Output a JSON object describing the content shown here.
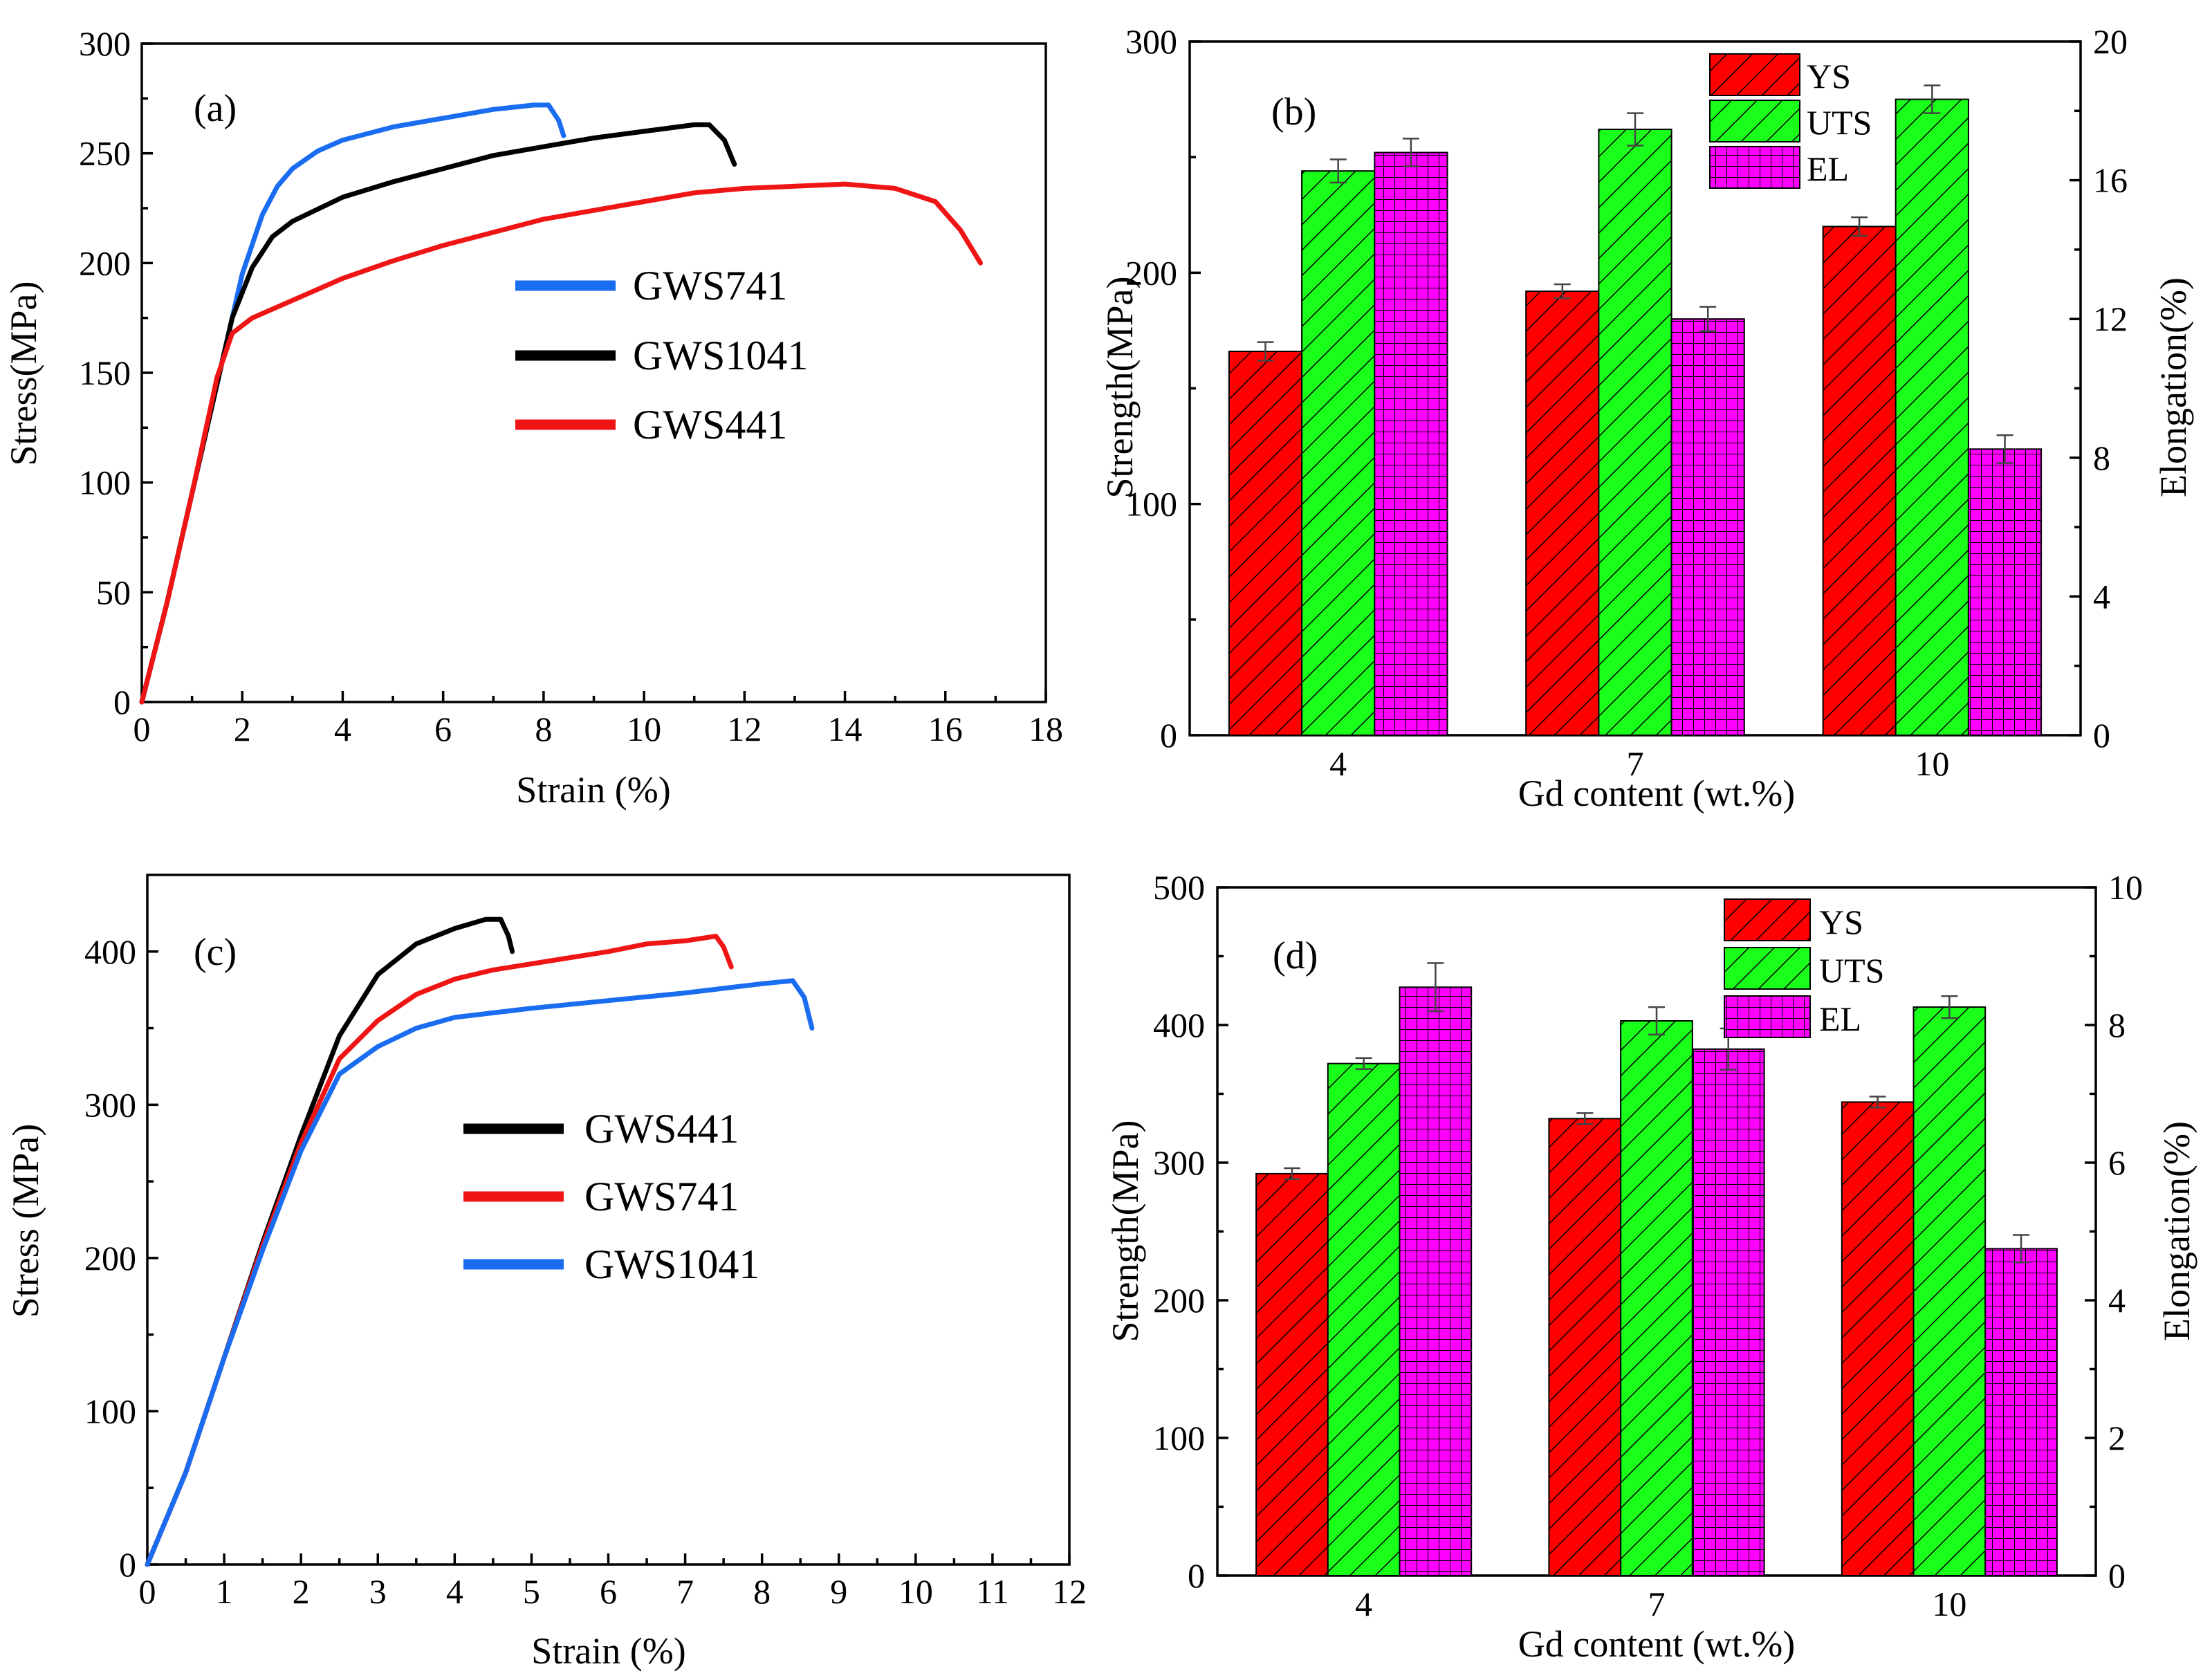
{
  "chart_data": [
    {
      "id": "a",
      "type": "line",
      "panel_label": "(a)",
      "xlabel": "Strain (%)",
      "ylabel": "Stress(MPa)",
      "xlim": [
        0,
        18
      ],
      "ylim": [
        0,
        300
      ],
      "xticks": [
        0,
        2,
        4,
        6,
        8,
        10,
        12,
        14,
        16,
        18
      ],
      "yticks": [
        0,
        50,
        100,
        150,
        200,
        250,
        300
      ],
      "legend_position": "center",
      "series": [
        {
          "name": "GWS741",
          "color": "#1a6cf0",
          "points": [
            [
              0,
              0
            ],
            [
              0.5,
              45
            ],
            [
              1.0,
              95
            ],
            [
              1.5,
              145
            ],
            [
              2.0,
              195
            ],
            [
              2.4,
              222
            ],
            [
              2.7,
              235
            ],
            [
              3.0,
              243
            ],
            [
              3.5,
              251
            ],
            [
              4.0,
              256
            ],
            [
              5.0,
              262
            ],
            [
              6.0,
              266
            ],
            [
              7.0,
              270
            ],
            [
              7.8,
              272
            ],
            [
              8.1,
              272
            ],
            [
              8.3,
              265
            ],
            [
              8.4,
              258
            ]
          ]
        },
        {
          "name": "GWS1041",
          "color": "#000000",
          "points": [
            [
              0,
              0
            ],
            [
              0.5,
              45
            ],
            [
              1.0,
              95
            ],
            [
              1.5,
              145
            ],
            [
              1.8,
              175
            ],
            [
              2.2,
              198
            ],
            [
              2.6,
              212
            ],
            [
              3.0,
              219
            ],
            [
              4.0,
              230
            ],
            [
              5.0,
              237
            ],
            [
              6.0,
              243
            ],
            [
              7.0,
              249
            ],
            [
              8.0,
              253
            ],
            [
              9.0,
              257
            ],
            [
              10.0,
              260
            ],
            [
              11.0,
              263
            ],
            [
              11.3,
              263
            ],
            [
              11.6,
              256
            ],
            [
              11.8,
              245
            ]
          ]
        },
        {
          "name": "GWS441",
          "color": "#f01515",
          "points": [
            [
              0,
              0
            ],
            [
              0.5,
              45
            ],
            [
              1.0,
              95
            ],
            [
              1.5,
              148
            ],
            [
              1.8,
              168
            ],
            [
              2.2,
              175
            ],
            [
              3.0,
              183
            ],
            [
              4.0,
              193
            ],
            [
              5.0,
              201
            ],
            [
              6.0,
              208
            ],
            [
              7.0,
              214
            ],
            [
              8.0,
              220
            ],
            [
              9.0,
              224
            ],
            [
              10.0,
              228
            ],
            [
              11.0,
              232
            ],
            [
              12.0,
              234
            ],
            [
              13.0,
              235
            ],
            [
              14.0,
              236
            ],
            [
              15.0,
              234
            ],
            [
              15.8,
              228
            ],
            [
              16.3,
              215
            ],
            [
              16.7,
              200
            ]
          ]
        }
      ]
    },
    {
      "id": "b",
      "type": "bar",
      "panel_label": "(b)",
      "xlabel": "Gd content (wt.%)",
      "ylabel": "Strength(MPa)",
      "y2label": "Elongation(%)",
      "categories": [
        "4",
        "7",
        "10"
      ],
      "ylim": [
        0,
        300
      ],
      "y2lim": [
        0,
        20
      ],
      "yticks": [
        0,
        100,
        200,
        300
      ],
      "y2ticks": [
        0,
        4,
        8,
        12,
        16,
        20
      ],
      "legend_position": "top-right",
      "series": [
        {
          "name": "YS",
          "axis": "left",
          "color": "#ff0000",
          "pattern": "diag",
          "values": [
            166,
            192,
            220
          ],
          "errors": [
            4,
            3,
            4
          ]
        },
        {
          "name": "UTS",
          "axis": "left",
          "color": "#1aff1a",
          "pattern": "diag",
          "values": [
            244,
            262,
            275
          ],
          "errors": [
            5,
            7,
            6
          ]
        },
        {
          "name": "EL",
          "axis": "right",
          "color": "#ff00ff",
          "pattern": "grid",
          "values": [
            16.8,
            12.0,
            8.25
          ],
          "errors": [
            0.4,
            0.35,
            0.4
          ]
        }
      ]
    },
    {
      "id": "c",
      "type": "line",
      "panel_label": "(c)",
      "xlabel": "Strain (%)",
      "ylabel": "Stress (MPa)",
      "xlim": [
        0,
        12
      ],
      "ylim": [
        0,
        450
      ],
      "xticks": [
        0,
        1,
        2,
        3,
        4,
        5,
        6,
        7,
        8,
        9,
        10,
        11,
        12
      ],
      "yticks": [
        0,
        100,
        200,
        300,
        400
      ],
      "legend_position": "center",
      "series": [
        {
          "name": "GWS441",
          "color": "#000000",
          "points": [
            [
              0,
              0
            ],
            [
              0.5,
              60
            ],
            [
              1.0,
              135
            ],
            [
              1.5,
              210
            ],
            [
              2.0,
              280
            ],
            [
              2.5,
              345
            ],
            [
              3.0,
              385
            ],
            [
              3.5,
              405
            ],
            [
              4.0,
              415
            ],
            [
              4.4,
              421
            ],
            [
              4.6,
              421
            ],
            [
              4.7,
              410
            ],
            [
              4.75,
              400
            ]
          ]
        },
        {
          "name": "GWS741",
          "color": "#f01515",
          "points": [
            [
              0,
              0
            ],
            [
              0.5,
              60
            ],
            [
              1.0,
              135
            ],
            [
              1.5,
              208
            ],
            [
              2.0,
              275
            ],
            [
              2.5,
              330
            ],
            [
              3.0,
              355
            ],
            [
              3.5,
              372
            ],
            [
              4.0,
              382
            ],
            [
              4.5,
              388
            ],
            [
              5.0,
              392
            ],
            [
              6.0,
              400
            ],
            [
              6.5,
              405
            ],
            [
              7.0,
              407
            ],
            [
              7.4,
              410
            ],
            [
              7.5,
              403
            ],
            [
              7.6,
              390
            ]
          ]
        },
        {
          "name": "GWS1041",
          "color": "#1a6cf0",
          "points": [
            [
              0,
              0
            ],
            [
              0.5,
              60
            ],
            [
              1.0,
              135
            ],
            [
              1.5,
              205
            ],
            [
              2.0,
              270
            ],
            [
              2.5,
              320
            ],
            [
              3.0,
              338
            ],
            [
              3.5,
              350
            ],
            [
              4.0,
              357
            ],
            [
              5.0,
              363
            ],
            [
              6.0,
              368
            ],
            [
              7.0,
              373
            ],
            [
              8.0,
              379
            ],
            [
              8.4,
              381
            ],
            [
              8.55,
              370
            ],
            [
              8.65,
              350
            ]
          ]
        }
      ]
    },
    {
      "id": "d",
      "type": "bar",
      "panel_label": "(d)",
      "xlabel": "Gd content (wt.%)",
      "ylabel": "Strength(MPa)",
      "y2label": "Elongation(%)",
      "categories": [
        "4",
        "7",
        "10"
      ],
      "ylim": [
        0,
        500
      ],
      "y2lim": [
        0,
        10
      ],
      "yticks": [
        0,
        100,
        200,
        300,
        400,
        500
      ],
      "y2ticks": [
        0,
        2,
        4,
        6,
        8,
        10
      ],
      "legend_position": "top-right",
      "series": [
        {
          "name": "YS",
          "axis": "left",
          "color": "#ff0000",
          "pattern": "diag",
          "values": [
            292,
            332,
            344
          ],
          "errors": [
            4,
            4,
            4
          ]
        },
        {
          "name": "UTS",
          "axis": "left",
          "color": "#1aff1a",
          "pattern": "diag",
          "values": [
            372,
            403,
            413
          ],
          "errors": [
            4,
            10,
            8
          ]
        },
        {
          "name": "EL",
          "axis": "right",
          "color": "#ff00ff",
          "pattern": "grid",
          "values": [
            8.55,
            7.65,
            4.75
          ],
          "errors": [
            0.35,
            0.3,
            0.2
          ]
        }
      ]
    }
  ]
}
